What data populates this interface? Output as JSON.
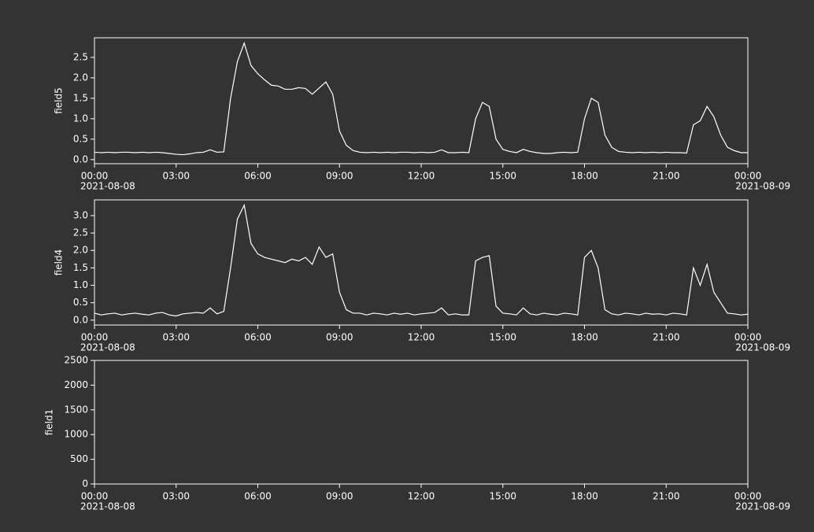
{
  "chart_data": [
    {
      "type": "line",
      "ylabel": "field5",
      "color": "#ffffff",
      "x": [
        0,
        0.25,
        0.5,
        0.75,
        1,
        1.25,
        1.5,
        1.75,
        2,
        2.25,
        2.5,
        2.75,
        3,
        3.25,
        3.5,
        3.75,
        4,
        4.25,
        4.5,
        4.75,
        5,
        5.25,
        5.5,
        5.75,
        6,
        6.25,
        6.5,
        6.75,
        7,
        7.25,
        7.5,
        7.75,
        8,
        8.25,
        8.5,
        8.75,
        9,
        9.25,
        9.5,
        9.75,
        10,
        10.25,
        10.5,
        10.75,
        11,
        11.25,
        11.5,
        11.75,
        12,
        12.25,
        12.5,
        12.75,
        13,
        13.25,
        13.5,
        13.75,
        14,
        14.25,
        14.5,
        14.75,
        15,
        15.25,
        15.5,
        15.75,
        16,
        16.25,
        16.5,
        16.75,
        17,
        17.25,
        17.5,
        17.75,
        18,
        18.25,
        18.5,
        18.75,
        19,
        19.25,
        19.5,
        19.75,
        20,
        20.25,
        20.5,
        20.75,
        21,
        21.25,
        21.5,
        21.75,
        22,
        22.25,
        22.5,
        22.75,
        23,
        23.25,
        23.5,
        23.75,
        24
      ],
      "values": [
        0.18,
        0.17,
        0.18,
        0.17,
        0.18,
        0.18,
        0.17,
        0.18,
        0.17,
        0.18,
        0.17,
        0.15,
        0.13,
        0.12,
        0.14,
        0.17,
        0.18,
        0.24,
        0.18,
        0.19,
        1.5,
        2.4,
        2.85,
        2.3,
        2.1,
        1.95,
        1.82,
        1.8,
        1.72,
        1.72,
        1.76,
        1.74,
        1.6,
        1.75,
        1.9,
        1.6,
        0.7,
        0.35,
        0.22,
        0.18,
        0.17,
        0.18,
        0.17,
        0.18,
        0.17,
        0.18,
        0.18,
        0.17,
        0.18,
        0.17,
        0.18,
        0.24,
        0.17,
        0.17,
        0.18,
        0.17,
        1.0,
        1.4,
        1.3,
        0.5,
        0.25,
        0.2,
        0.17,
        0.25,
        0.2,
        0.17,
        0.15,
        0.15,
        0.17,
        0.18,
        0.17,
        0.18,
        1.0,
        1.5,
        1.4,
        0.6,
        0.3,
        0.2,
        0.18,
        0.17,
        0.18,
        0.17,
        0.18,
        0.17,
        0.18,
        0.17,
        0.17,
        0.16,
        0.85,
        0.95,
        1.3,
        1.05,
        0.6,
        0.3,
        0.22,
        0.17,
        0.17
      ],
      "xlim": [
        0,
        24
      ],
      "xticks": [
        {
          "value": 0,
          "label": "00:00"
        },
        {
          "value": 3,
          "label": "03:00"
        },
        {
          "value": 6,
          "label": "06:00"
        },
        {
          "value": 9,
          "label": "09:00"
        },
        {
          "value": 12,
          "label": "12:00"
        },
        {
          "value": 15,
          "label": "15:00"
        },
        {
          "value": 18,
          "label": "18:00"
        },
        {
          "value": 21,
          "label": "21:00"
        },
        {
          "value": 24,
          "label": "00:00"
        }
      ],
      "x_start_date": "2021-08-08",
      "x_end_date": "2021-08-09",
      "ylim": [
        -0.1,
        2.98
      ],
      "yticks": [
        {
          "value": 0,
          "label": "0.0"
        },
        0.5,
        {
          "value": 1,
          "label": "1.0"
        },
        1.5,
        {
          "value": 2,
          "label": "2.0"
        },
        2.5
      ]
    },
    {
      "type": "line",
      "ylabel": "field4",
      "color": "#ffffff",
      "x": [
        0,
        0.25,
        0.5,
        0.75,
        1,
        1.25,
        1.5,
        1.75,
        2,
        2.25,
        2.5,
        2.75,
        3,
        3.25,
        3.5,
        3.75,
        4,
        4.25,
        4.5,
        4.75,
        5,
        5.25,
        5.5,
        5.75,
        6,
        6.25,
        6.5,
        6.75,
        7,
        7.25,
        7.5,
        7.75,
        8,
        8.25,
        8.5,
        8.75,
        9,
        9.25,
        9.5,
        9.75,
        10,
        10.25,
        10.5,
        10.75,
        11,
        11.25,
        11.5,
        11.75,
        12,
        12.25,
        12.5,
        12.75,
        13,
        13.25,
        13.5,
        13.75,
        14,
        14.25,
        14.5,
        14.75,
        15,
        15.25,
        15.5,
        15.75,
        16,
        16.25,
        16.5,
        16.75,
        17,
        17.25,
        17.5,
        17.75,
        18,
        18.25,
        18.5,
        18.75,
        19,
        19.25,
        19.5,
        19.75,
        20,
        20.25,
        20.5,
        20.75,
        21,
        21.25,
        21.5,
        21.75,
        22,
        22.25,
        22.5,
        22.75,
        23,
        23.25,
        23.5,
        23.75,
        24
      ],
      "values": [
        0.2,
        0.15,
        0.18,
        0.2,
        0.15,
        0.18,
        0.2,
        0.17,
        0.15,
        0.2,
        0.22,
        0.15,
        0.12,
        0.18,
        0.2,
        0.22,
        0.2,
        0.35,
        0.18,
        0.25,
        1.5,
        2.9,
        3.3,
        2.2,
        1.9,
        1.8,
        1.75,
        1.7,
        1.65,
        1.75,
        1.7,
        1.8,
        1.6,
        2.1,
        1.8,
        1.9,
        0.8,
        0.3,
        0.2,
        0.2,
        0.15,
        0.2,
        0.18,
        0.15,
        0.2,
        0.17,
        0.2,
        0.15,
        0.18,
        0.2,
        0.22,
        0.35,
        0.15,
        0.18,
        0.15,
        0.15,
        1.7,
        1.8,
        1.85,
        0.4,
        0.2,
        0.18,
        0.15,
        0.35,
        0.18,
        0.15,
        0.2,
        0.17,
        0.15,
        0.2,
        0.18,
        0.15,
        1.8,
        2.0,
        1.5,
        0.3,
        0.18,
        0.15,
        0.2,
        0.18,
        0.15,
        0.2,
        0.17,
        0.18,
        0.15,
        0.2,
        0.18,
        0.15,
        1.5,
        1.0,
        1.6,
        0.8,
        0.5,
        0.2,
        0.18,
        0.15,
        0.17
      ],
      "xlim": [
        0,
        24
      ],
      "xticks": [
        {
          "value": 0,
          "label": "00:00"
        },
        {
          "value": 3,
          "label": "03:00"
        },
        {
          "value": 6,
          "label": "06:00"
        },
        {
          "value": 9,
          "label": "09:00"
        },
        {
          "value": 12,
          "label": "12:00"
        },
        {
          "value": 15,
          "label": "15:00"
        },
        {
          "value": 18,
          "label": "18:00"
        },
        {
          "value": 21,
          "label": "21:00"
        },
        {
          "value": 24,
          "label": "00:00"
        }
      ],
      "x_start_date": "2021-08-08",
      "x_end_date": "2021-08-09",
      "ylim": [
        -0.14,
        3.45
      ],
      "yticks": [
        {
          "value": 0,
          "label": "0.0"
        },
        0.5,
        {
          "value": 1,
          "label": "1.0"
        },
        1.5,
        {
          "value": 2,
          "label": "2.0"
        },
        2.5,
        {
          "value": 3,
          "label": "3.0"
        }
      ]
    },
    {
      "type": "line",
      "ylabel": "field1",
      "xlim": [
        0,
        24
      ],
      "xticks": [
        {
          "value": 0,
          "label": "00:00"
        },
        {
          "value": 3,
          "label": "03:00"
        },
        {
          "value": 6,
          "label": "06:00"
        },
        {
          "value": 9,
          "label": "09:00"
        },
        {
          "value": 12,
          "label": "12:00"
        },
        {
          "value": 15,
          "label": "15:00"
        },
        {
          "value": 18,
          "label": "18:00"
        },
        {
          "value": 21,
          "label": "21:00"
        },
        {
          "value": 24,
          "label": "00:00"
        }
      ],
      "x_start_date": "2021-08-08",
      "x_end_date": "2021-08-09",
      "ylim": [
        0,
        2500
      ],
      "yticks": [
        0,
        500,
        1000,
        1500,
        2000,
        2500
      ]
    }
  ]
}
